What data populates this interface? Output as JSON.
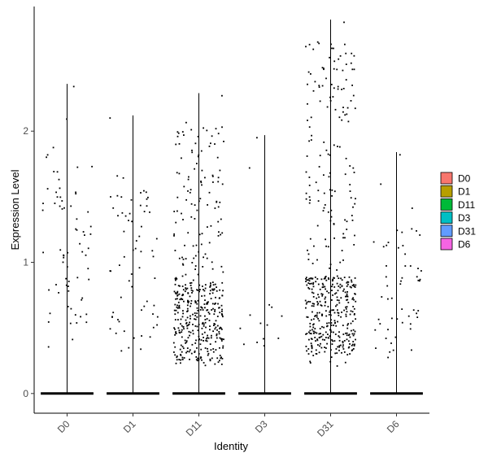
{
  "chart_data": {
    "type": "violin",
    "xlabel": "Identity",
    "ylabel": "Expression Level",
    "categories": [
      "D0",
      "D1",
      "D11",
      "D3",
      "D31",
      "D6"
    ],
    "ylim": [
      -0.15,
      2.95
    ],
    "yticks": [
      0,
      1,
      2
    ],
    "legend": {
      "placement": "right",
      "entries": [
        {
          "label": "D0",
          "color": "#F8766D"
        },
        {
          "label": "D1",
          "color": "#B79F00"
        },
        {
          "label": "D11",
          "color": "#00BA38"
        },
        {
          "label": "D3",
          "color": "#00BFC4"
        },
        {
          "label": "D31",
          "color": "#619CFF"
        },
        {
          "label": "D6",
          "color": "#F564E3"
        }
      ]
    },
    "groups": [
      {
        "label": "D0",
        "max": 2.36,
        "n_points": 70,
        "n_zero": 600,
        "box": [
          0.3,
          2.1
        ],
        "core": [
          0.4,
          1.9
        ]
      },
      {
        "label": "D1",
        "max": 2.12,
        "n_points": 65,
        "n_zero": 600,
        "box": [
          0.3,
          1.8
        ],
        "core": [
          0.4,
          1.6
        ]
      },
      {
        "label": "D11",
        "max": 2.29,
        "n_points": 450,
        "n_zero": 500,
        "box": [
          0.2,
          2.1
        ],
        "core": [
          0.25,
          0.85
        ]
      },
      {
        "label": "D3",
        "max": 1.97,
        "n_points": 14,
        "n_zero": 600,
        "box": [
          0.3,
          1.8
        ],
        "core": [
          0.3,
          0.7
        ]
      },
      {
        "label": "D31",
        "max": 2.85,
        "n_points": 480,
        "n_zero": 500,
        "box": [
          0.2,
          2.7
        ],
        "core": [
          0.3,
          0.9
        ]
      },
      {
        "label": "D6",
        "max": 1.84,
        "n_points": 55,
        "n_zero": 600,
        "box": [
          0.2,
          1.6
        ],
        "core": [
          0.3,
          1.3
        ]
      }
    ]
  }
}
